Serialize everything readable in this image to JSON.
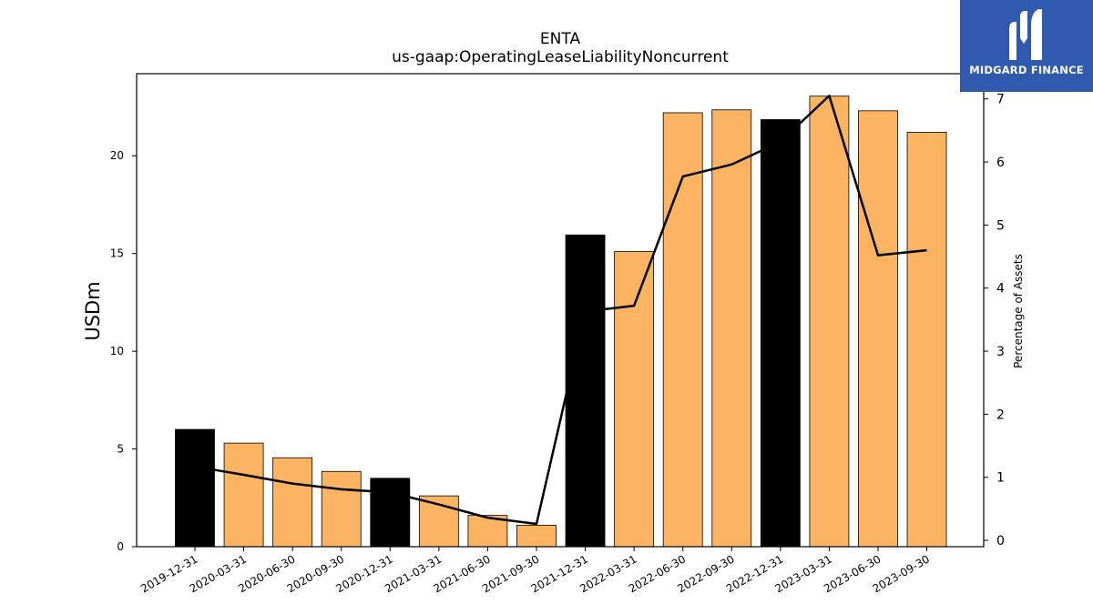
{
  "chart_data": {
    "type": "bar",
    "title": "ENTA",
    "subtitle": "us-gaap:OperatingLeaseLiabilityNoncurrent",
    "ylabel": "USDm",
    "ylabel_right": "Percentage of Assets",
    "ylim": [
      0,
      24.2
    ],
    "ylim_right": [
      -0.1,
      7.4
    ],
    "yticks": [
      0,
      5,
      10,
      15,
      20
    ],
    "yticks_right": [
      0,
      1,
      2,
      3,
      4,
      5,
      6,
      7
    ],
    "categories": [
      "2019-12-31",
      "2020-03-31",
      "2020-06-30",
      "2020-09-30",
      "2020-12-31",
      "2021-03-31",
      "2021-06-30",
      "2021-09-30",
      "2021-12-31",
      "2022-03-31",
      "2022-06-30",
      "2022-09-30",
      "2022-12-31",
      "2023-03-31",
      "2023-06-30",
      "2023-09-30"
    ],
    "series": [
      {
        "type": "bar",
        "values": [
          6.0,
          5.3,
          4.55,
          3.85,
          3.5,
          2.6,
          1.6,
          1.1,
          15.95,
          15.1,
          22.2,
          22.35,
          21.85,
          23.05,
          22.3,
          21.2
        ],
        "colors": [
          "#000000",
          "#fdb462",
          "#fdb462",
          "#fdb462",
          "#000000",
          "#fdb462",
          "#fdb462",
          "#fdb462",
          "#000000",
          "#fdb462",
          "#fdb462",
          "#fdb462",
          "#000000",
          "#fdb462",
          "#fdb462",
          "#fdb462"
        ]
      },
      {
        "type": "line",
        "axis": "right",
        "values": [
          1.17,
          1.04,
          0.9,
          0.81,
          0.76,
          0.57,
          0.36,
          0.26,
          3.63,
          3.72,
          5.77,
          5.96,
          6.32,
          7.05,
          4.52,
          4.6
        ],
        "color": "#000000"
      }
    ],
    "grid": false,
    "legend": "none"
  },
  "logo": {
    "text": "MIDGARD FINANCE"
  }
}
